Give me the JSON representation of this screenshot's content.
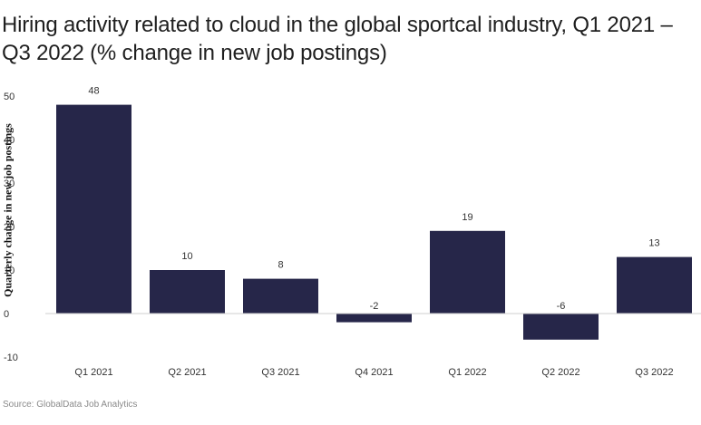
{
  "chart_data": {
    "type": "bar",
    "title": "Hiring activity related to cloud in the global sportcal industry, Q1 2021 – Q3 2022 (% change in new job postings)",
    "ylabel": "Quarterly change in new job postings",
    "xlabel": "",
    "categories": [
      "Q1 2021",
      "Q2 2021",
      "Q3 2021",
      "Q4 2021",
      "Q1 2022",
      "Q2 2022",
      "Q3 2022"
    ],
    "values": [
      48,
      10,
      8,
      -2,
      19,
      -6,
      13
    ],
    "ylim": [
      -10,
      50
    ],
    "yticks": [
      -10,
      0,
      10,
      20,
      30,
      40,
      50
    ],
    "grid": false,
    "bar_color": "#262649",
    "source": "Source: GlobalData Job Analytics"
  }
}
